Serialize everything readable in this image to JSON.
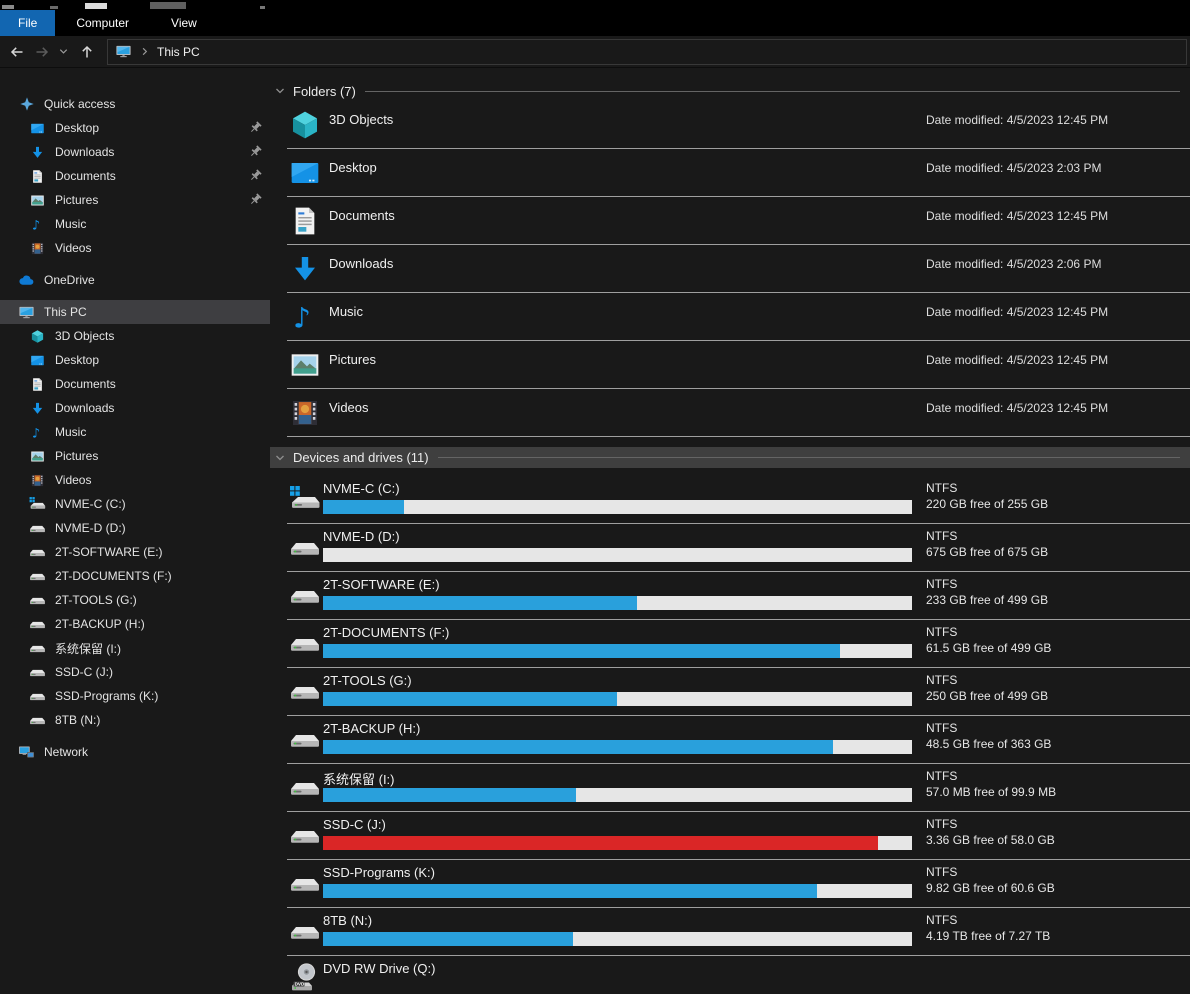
{
  "window": {
    "menu_tabs": [
      "File",
      "Computer",
      "View"
    ],
    "breadcrumb": "This PC"
  },
  "sidebar": {
    "quick_access_label": "Quick access",
    "quick_access_items": [
      {
        "label": "Desktop",
        "icon": "desktop-icon",
        "pinned": true
      },
      {
        "label": "Downloads",
        "icon": "download-icon",
        "pinned": true
      },
      {
        "label": "Documents",
        "icon": "document-icon",
        "pinned": true
      },
      {
        "label": "Pictures",
        "icon": "pictures-icon",
        "pinned": true
      },
      {
        "label": "Music",
        "icon": "music-icon",
        "pinned": false
      },
      {
        "label": "Videos",
        "icon": "videos-icon",
        "pinned": false
      }
    ],
    "onedrive_label": "OneDrive",
    "this_pc_label": "This PC",
    "this_pc_items": [
      {
        "label": "3D Objects",
        "icon": "3d-objects-icon"
      },
      {
        "label": "Desktop",
        "icon": "desktop-icon"
      },
      {
        "label": "Documents",
        "icon": "document-icon"
      },
      {
        "label": "Downloads",
        "icon": "download-icon"
      },
      {
        "label": "Music",
        "icon": "music-icon"
      },
      {
        "label": "Pictures",
        "icon": "pictures-icon"
      },
      {
        "label": "Videos",
        "icon": "videos-icon"
      },
      {
        "label": "NVME-C (C:)",
        "icon": "system-drive-icon"
      },
      {
        "label": "NVME-D (D:)",
        "icon": "drive-icon"
      },
      {
        "label": "2T-SOFTWARE (E:)",
        "icon": "drive-icon"
      },
      {
        "label": "2T-DOCUMENTS (F:)",
        "icon": "drive-icon"
      },
      {
        "label": "2T-TOOLS (G:)",
        "icon": "drive-icon"
      },
      {
        "label": "2T-BACKUP (H:)",
        "icon": "drive-icon"
      },
      {
        "label": "系统保留 (I:)",
        "icon": "drive-icon"
      },
      {
        "label": "SSD-C (J:)",
        "icon": "drive-icon"
      },
      {
        "label": "SSD-Programs (K:)",
        "icon": "drive-icon"
      },
      {
        "label": "8TB (N:)",
        "icon": "drive-icon"
      }
    ],
    "network_label": "Network"
  },
  "main": {
    "folders_header": "Folders (7)",
    "folders": [
      {
        "name": "3D Objects",
        "date": "Date modified: 4/5/2023 12:45 PM"
      },
      {
        "name": "Desktop",
        "date": "Date modified: 4/5/2023 2:03 PM"
      },
      {
        "name": "Documents",
        "date": "Date modified: 4/5/2023 12:45 PM"
      },
      {
        "name": "Downloads",
        "date": "Date modified: 4/5/2023 2:06 PM"
      },
      {
        "name": "Music",
        "date": "Date modified: 4/5/2023 12:45 PM"
      },
      {
        "name": "Pictures",
        "date": "Date modified: 4/5/2023 12:45 PM"
      },
      {
        "name": "Videos",
        "date": "Date modified: 4/5/2023 12:45 PM"
      }
    ],
    "devices_header": "Devices and drives (11)",
    "drives": [
      {
        "name": "NVME-C (C:)",
        "fs": "NTFS",
        "free": "220 GB free of 255 GB",
        "used_pct": 13.7,
        "bar_color": "#29a0dc"
      },
      {
        "name": "NVME-D (D:)",
        "fs": "NTFS",
        "free": "675 GB free of 675 GB",
        "used_pct": 0,
        "bar_color": "#29a0dc"
      },
      {
        "name": "2T-SOFTWARE (E:)",
        "fs": "NTFS",
        "free": "233 GB free of 499 GB",
        "used_pct": 53.3,
        "bar_color": "#29a0dc"
      },
      {
        "name": "2T-DOCUMENTS (F:)",
        "fs": "NTFS",
        "free": "61.5 GB free of 499 GB",
        "used_pct": 87.7,
        "bar_color": "#29a0dc"
      },
      {
        "name": "2T-TOOLS (G:)",
        "fs": "NTFS",
        "free": "250 GB free of 499 GB",
        "used_pct": 49.9,
        "bar_color": "#29a0dc"
      },
      {
        "name": "2T-BACKUP (H:)",
        "fs": "NTFS",
        "free": "48.5 GB free of 363 GB",
        "used_pct": 86.6,
        "bar_color": "#29a0dc"
      },
      {
        "name": "系统保留 (I:)",
        "fs": "NTFS",
        "free": "57.0 MB free of 99.9 MB",
        "used_pct": 42.9,
        "bar_color": "#29a0dc"
      },
      {
        "name": "SSD-C (J:)",
        "fs": "NTFS",
        "free": "3.36 GB free of 58.0 GB",
        "used_pct": 94.2,
        "bar_color": "#da2626"
      },
      {
        "name": "SSD-Programs (K:)",
        "fs": "NTFS",
        "free": "9.82 GB free of 60.6 GB",
        "used_pct": 83.8,
        "bar_color": "#29a0dc"
      },
      {
        "name": "8TB (N:)",
        "fs": "NTFS",
        "free": "4.19 TB free of 7.27 TB",
        "used_pct": 42.4,
        "bar_color": "#29a0dc"
      }
    ],
    "dvd_name": "DVD RW Drive (Q:)"
  },
  "colors": {
    "accent_blue": "#1266b1",
    "bar_blue": "#29a0dc",
    "bar_red": "#da2626",
    "bar_track": "#e6e6e6",
    "selected_sidebar_bg": "#3e3e41",
    "devices_header_bg": "#3f3f3f"
  }
}
